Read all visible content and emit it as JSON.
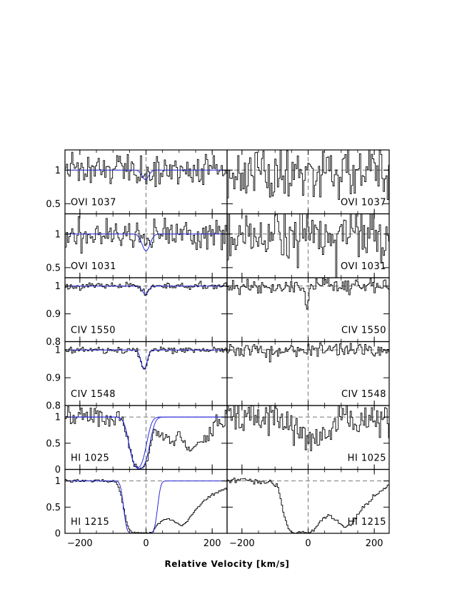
{
  "chart_data": {
    "type": "line",
    "title": "",
    "xlabel": "Relative Velocity [km/s]",
    "xlim": [
      -245,
      245
    ],
    "xticks": [
      -200,
      0,
      200
    ],
    "xtick_labels": [
      "−200",
      "0",
      "200",
      "−200",
      "0",
      "200"
    ],
    "colors": {
      "spectrum": "#000000",
      "model": "#2a2adb",
      "reference": "#777777"
    },
    "rows": [
      {
        "ion": "OVI 1037",
        "label_left": "OVI  1037",
        "label_right": "OVI  1037",
        "ylim": [
          0.35,
          1.3
        ],
        "yticks": [
          0.5,
          1
        ],
        "ytick_labels": [
          "0.5",
          "1"
        ],
        "left": {
          "model": {
            "type": "gauss",
            "center": -2,
            "sigma": 10,
            "depth": 0.14
          },
          "noise": 0.17,
          "seed": 11
        },
        "right": {
          "noise": 0.28,
          "seed": 12
        }
      },
      {
        "ion": "OVI 1031",
        "label_left": "OVI  1031",
        "label_right": "OVI  1031",
        "ylim": [
          0.35,
          1.3
        ],
        "yticks": [
          0.5,
          1
        ],
        "ytick_labels": [
          "0.5",
          "1"
        ],
        "left": {
          "model": {
            "type": "gauss",
            "center": 0,
            "sigma": 12,
            "depth": 0.25
          },
          "noise": 0.16,
          "seed": 21
        },
        "right": {
          "noise": 0.32,
          "seed": 22
        }
      },
      {
        "ion": "CIV 1550",
        "label_left": "CIV  1550",
        "label_right": "CIV  1550",
        "ylim": [
          0.8,
          1.03
        ],
        "yticks": [
          0.8,
          0.9,
          1
        ],
        "ytick_labels": [
          "0.8",
          "0.9",
          "1"
        ],
        "left": {
          "model": {
            "type": "gauss",
            "center": -2,
            "sigma": 9,
            "depth": 0.03
          },
          "noise": 0.008,
          "seed": 31
        },
        "right": {
          "noise": 0.02,
          "seed": 32,
          "dip": {
            "center": -5,
            "sigma": 5,
            "depth": 0.07
          }
        }
      },
      {
        "ion": "CIV 1548",
        "label_left": "CIV  1548",
        "label_right": "CIV  1548",
        "ylim": [
          0.8,
          1.03
        ],
        "yticks": [
          0.8,
          0.9,
          1
        ],
        "ytick_labels": [
          "0.8",
          "0.9",
          "1"
        ],
        "left": {
          "model": {
            "type": "gauss",
            "center": -6,
            "sigma": 9,
            "depth": 0.07
          },
          "noise": 0.008,
          "seed": 41
        },
        "right": {
          "noise": 0.02,
          "seed": 42
        }
      },
      {
        "ion": "HI 1025",
        "label_left": "HI  1025",
        "label_right": "HI  1025",
        "ylim": [
          0,
          1.22
        ],
        "yticks": [
          0,
          0.5,
          1
        ],
        "ytick_labels": [
          "0",
          "0.5",
          "1"
        ],
        "left": {
          "model": {
            "type": "trough",
            "lo": -52,
            "hi": 2,
            "w": 18
          },
          "model2": {
            "type": "trough",
            "lo": -52,
            "hi": 12,
            "w": 18
          },
          "extra": [
            {
              "center": 55,
              "sigma": 28,
              "depth": 0.35
            },
            {
              "center": 140,
              "sigma": 45,
              "depth": 0.55
            }
          ],
          "noise": 0.12,
          "seed": 51
        },
        "right": {
          "noise": 0.22,
          "seed": 52,
          "dip": {
            "center": 20,
            "sigma": 40,
            "depth": 0.4
          }
        }
      },
      {
        "ion": "HI 1215",
        "label_left": "HI  1215",
        "label_right": "HI  1215",
        "ylim": [
          0,
          1.22
        ],
        "yticks": [
          0,
          0.5,
          1
        ],
        "ytick_labels": [
          "0",
          "0.5",
          "1"
        ],
        "left": {
          "model": {
            "type": "trough",
            "lo": -68,
            "hi": 35,
            "w": 11
          },
          "data": [
            [
              -245,
              1.0
            ],
            [
              -170,
              1.0
            ],
            [
              -140,
              1.02
            ],
            [
              -110,
              1.0
            ],
            [
              -90,
              0.98
            ],
            [
              -80,
              0.85
            ],
            [
              -70,
              0.55
            ],
            [
              -60,
              0.25
            ],
            [
              -50,
              0.05
            ],
            [
              -40,
              0.01
            ],
            [
              0,
              0.01
            ],
            [
              20,
              0.02
            ],
            [
              25,
              0.08
            ],
            [
              35,
              0.18
            ],
            [
              50,
              0.25
            ],
            [
              70,
              0.28
            ],
            [
              90,
              0.22
            ],
            [
              110,
              0.15
            ],
            [
              125,
              0.22
            ],
            [
              150,
              0.45
            ],
            [
              180,
              0.65
            ],
            [
              210,
              0.78
            ],
            [
              245,
              0.85
            ]
          ],
          "noise": 0.025,
          "seed": 61
        },
        "right": {
          "data": [
            [
              -245,
              1.0
            ],
            [
              -200,
              1.03
            ],
            [
              -150,
              0.98
            ],
            [
              -110,
              0.98
            ],
            [
              -90,
              0.85
            ],
            [
              -75,
              0.4
            ],
            [
              -60,
              0.1
            ],
            [
              -45,
              0.02
            ],
            [
              0,
              0.01
            ],
            [
              15,
              0.04
            ],
            [
              40,
              0.25
            ],
            [
              65,
              0.35
            ],
            [
              90,
              0.22
            ],
            [
              110,
              0.12
            ],
            [
              130,
              0.15
            ],
            [
              160,
              0.45
            ],
            [
              200,
              0.72
            ],
            [
              245,
              0.9
            ]
          ],
          "noise": 0.035,
          "seed": 62
        }
      }
    ]
  }
}
